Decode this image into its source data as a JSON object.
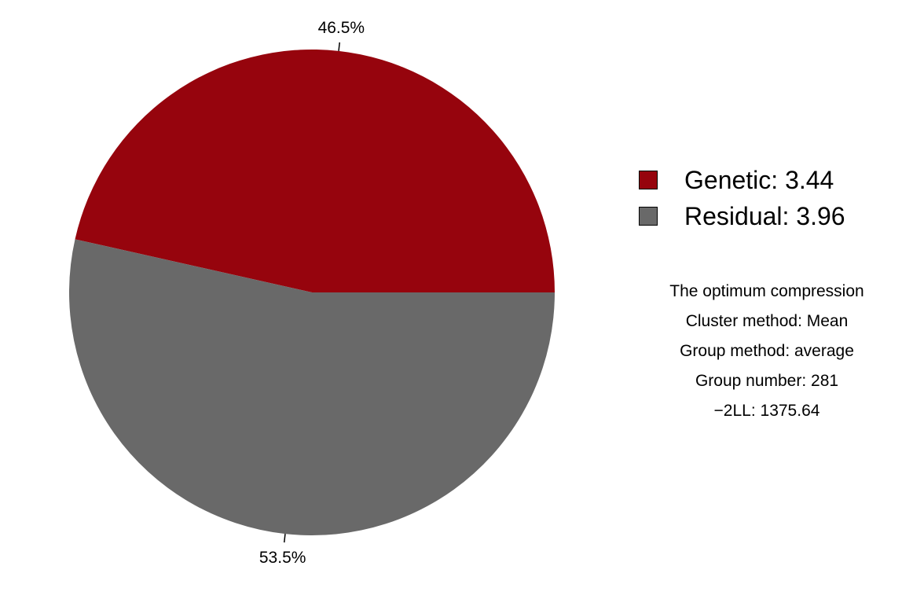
{
  "chart_data": {
    "type": "pie",
    "slices": [
      {
        "name": "Genetic",
        "value": 3.44,
        "percent": 46.5,
        "color": "#96040d"
      },
      {
        "name": "Residual",
        "value": 3.96,
        "percent": 53.5,
        "color": "#696969"
      }
    ],
    "labels": [
      "46.5%",
      "53.5%"
    ],
    "legend": {
      "position": "right",
      "entries": [
        "Genetic: 3.44",
        "Residual: 3.96"
      ]
    }
  },
  "annotations": {
    "lines": [
      "The optimum compression",
      "Cluster method: Mean",
      "Group method: average",
      "Group number: 281",
      "−2LL: 1375.64"
    ]
  }
}
